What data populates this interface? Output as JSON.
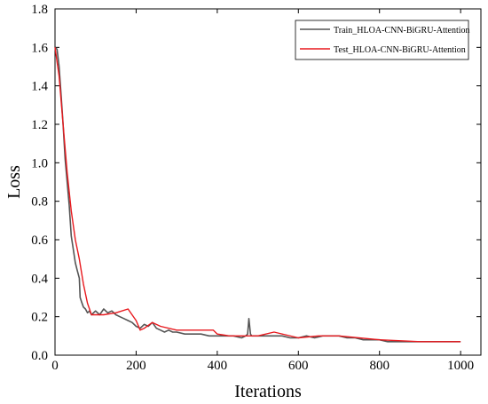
{
  "chart_data": {
    "type": "line",
    "title": "",
    "xlabel": "Iterations",
    "ylabel": "Loss",
    "xlim": [
      0,
      1050
    ],
    "ylim": [
      0,
      1.8
    ],
    "xticks": [
      "0",
      "200",
      "400",
      "600",
      "800",
      "1000"
    ],
    "yticks": [
      "0.0",
      "0.2",
      "0.4",
      "0.6",
      "0.8",
      "1.0",
      "1.2",
      "1.4",
      "1.6",
      "1.8"
    ],
    "grid": false,
    "legend_position": "top-right",
    "series": [
      {
        "name": "Train_HLOA-CNN-BiGRU-Attention",
        "color": "#555555",
        "x": [
          0,
          5,
          10,
          15,
          20,
          25,
          30,
          35,
          40,
          45,
          50,
          55,
          60,
          62,
          65,
          70,
          75,
          80,
          85,
          90,
          95,
          100,
          110,
          120,
          130,
          140,
          150,
          160,
          170,
          180,
          190,
          200,
          210,
          220,
          230,
          240,
          250,
          260,
          270,
          280,
          290,
          300,
          320,
          340,
          360,
          380,
          400,
          420,
          440,
          460,
          470,
          475,
          478,
          482,
          485,
          490,
          500,
          520,
          540,
          560,
          580,
          600,
          620,
          640,
          660,
          680,
          700,
          720,
          740,
          760,
          780,
          800,
          820,
          840,
          860,
          880,
          900,
          920,
          940,
          960,
          980,
          1000
        ],
        "y": [
          1.6,
          1.59,
          1.5,
          1.35,
          1.2,
          1.02,
          0.9,
          0.78,
          0.62,
          0.55,
          0.48,
          0.44,
          0.4,
          0.3,
          0.28,
          0.25,
          0.24,
          0.22,
          0.23,
          0.21,
          0.22,
          0.23,
          0.21,
          0.24,
          0.22,
          0.23,
          0.21,
          0.2,
          0.19,
          0.18,
          0.17,
          0.15,
          0.14,
          0.16,
          0.15,
          0.17,
          0.14,
          0.13,
          0.12,
          0.13,
          0.12,
          0.12,
          0.11,
          0.11,
          0.11,
          0.1,
          0.1,
          0.1,
          0.1,
          0.09,
          0.1,
          0.11,
          0.19,
          0.11,
          0.1,
          0.1,
          0.1,
          0.1,
          0.1,
          0.1,
          0.09,
          0.09,
          0.1,
          0.09,
          0.1,
          0.1,
          0.1,
          0.09,
          0.09,
          0.08,
          0.08,
          0.08,
          0.07,
          0.07,
          0.07,
          0.07,
          0.07,
          0.07,
          0.07,
          0.07,
          0.07,
          0.07
        ]
      },
      {
        "name": "Test_HLOA-CNN-BiGRU-Attention",
        "color": "#e8191e",
        "x": [
          0,
          10,
          20,
          30,
          40,
          50,
          60,
          70,
          80,
          90,
          120,
          150,
          180,
          200,
          210,
          220,
          240,
          260,
          300,
          350,
          390,
          400,
          430,
          500,
          540,
          600,
          650,
          700,
          800,
          900,
          1000
        ],
        "y": [
          1.6,
          1.45,
          1.2,
          0.95,
          0.75,
          0.6,
          0.5,
          0.37,
          0.27,
          0.21,
          0.21,
          0.22,
          0.24,
          0.18,
          0.13,
          0.14,
          0.17,
          0.15,
          0.13,
          0.13,
          0.13,
          0.11,
          0.1,
          0.1,
          0.12,
          0.09,
          0.1,
          0.1,
          0.08,
          0.07,
          0.07
        ]
      }
    ]
  }
}
